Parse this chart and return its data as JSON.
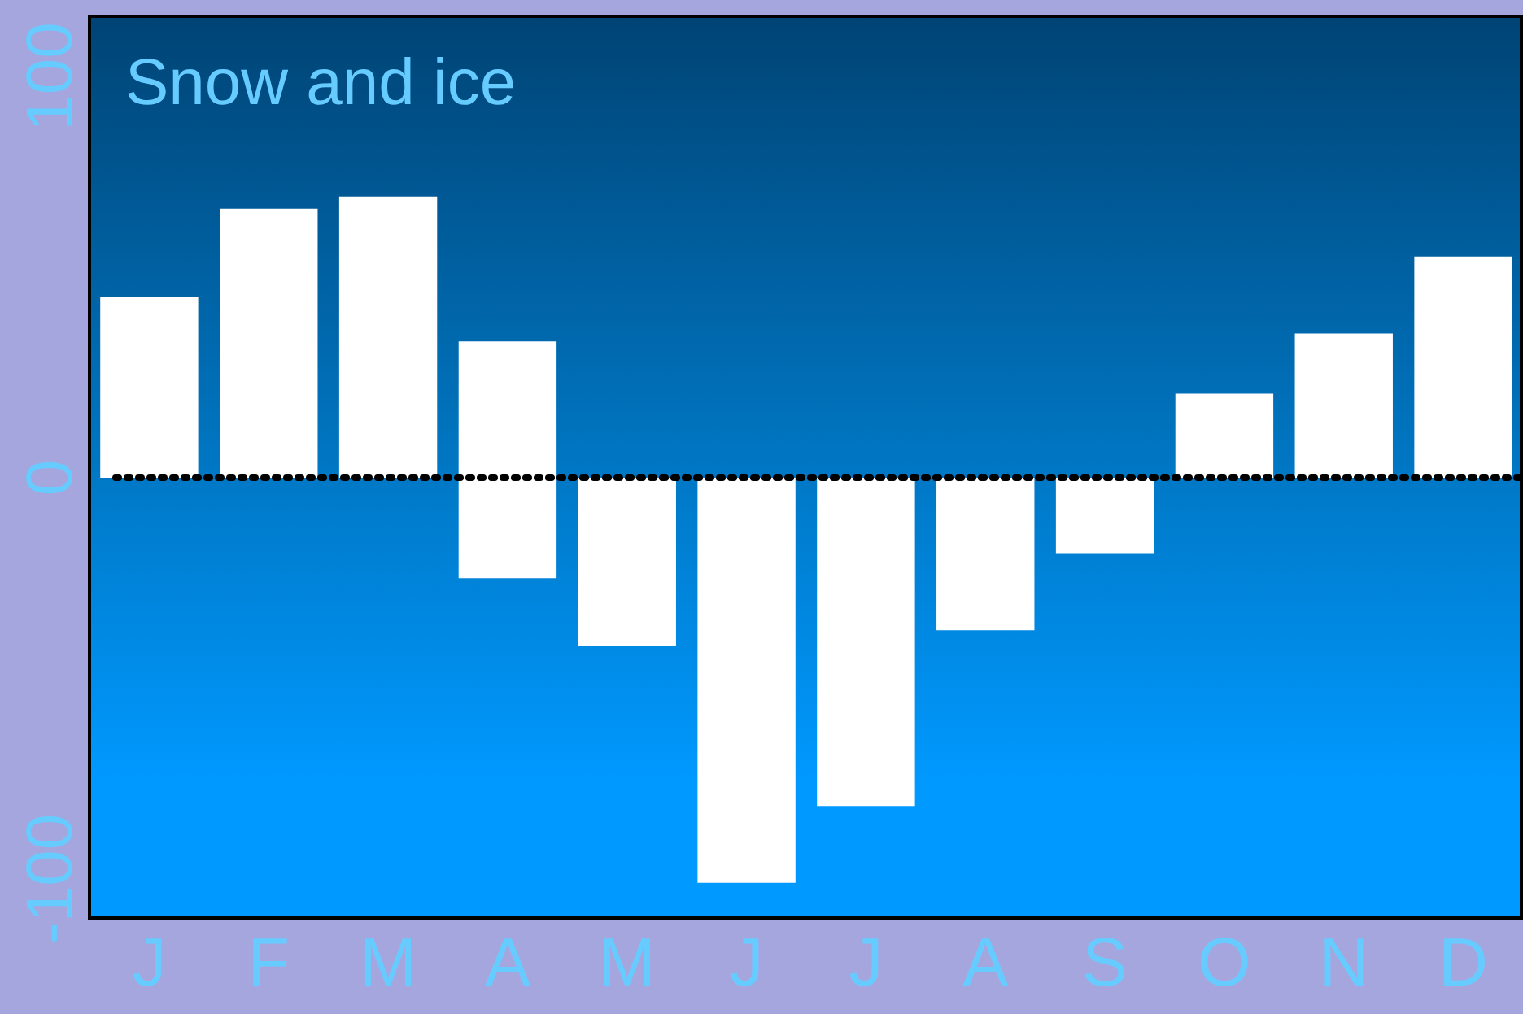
{
  "chart_data": {
    "type": "bar",
    "title": "Snow and ice",
    "stacked": true,
    "categories": [
      "J",
      "F",
      "M",
      "A",
      "M",
      "J",
      "J",
      "A",
      "S",
      "O",
      "N",
      "D"
    ],
    "series": [
      {
        "color": "#ffffff",
        "values": [
          45,
          67,
          70,
          34,
          null,
          null,
          null,
          null,
          null,
          21,
          36,
          55
        ]
      },
      {
        "color": "#ffffff",
        "values": [
          null,
          null,
          null,
          -25,
          -42,
          -101,
          -82,
          -38,
          -19,
          null,
          null,
          null
        ]
      }
    ],
    "ylim": [
      -110,
      115
    ],
    "yticks": [
      {
        "value": 100,
        "label": "100"
      },
      {
        "value": 0,
        "label": "0"
      },
      {
        "value": -100,
        "label": "-100"
      }
    ],
    "grid": false,
    "legend": false,
    "ref_lines": [
      {
        "axis": "y",
        "value": 0,
        "color": "#000000",
        "line_style": "dotted"
      }
    ]
  }
}
